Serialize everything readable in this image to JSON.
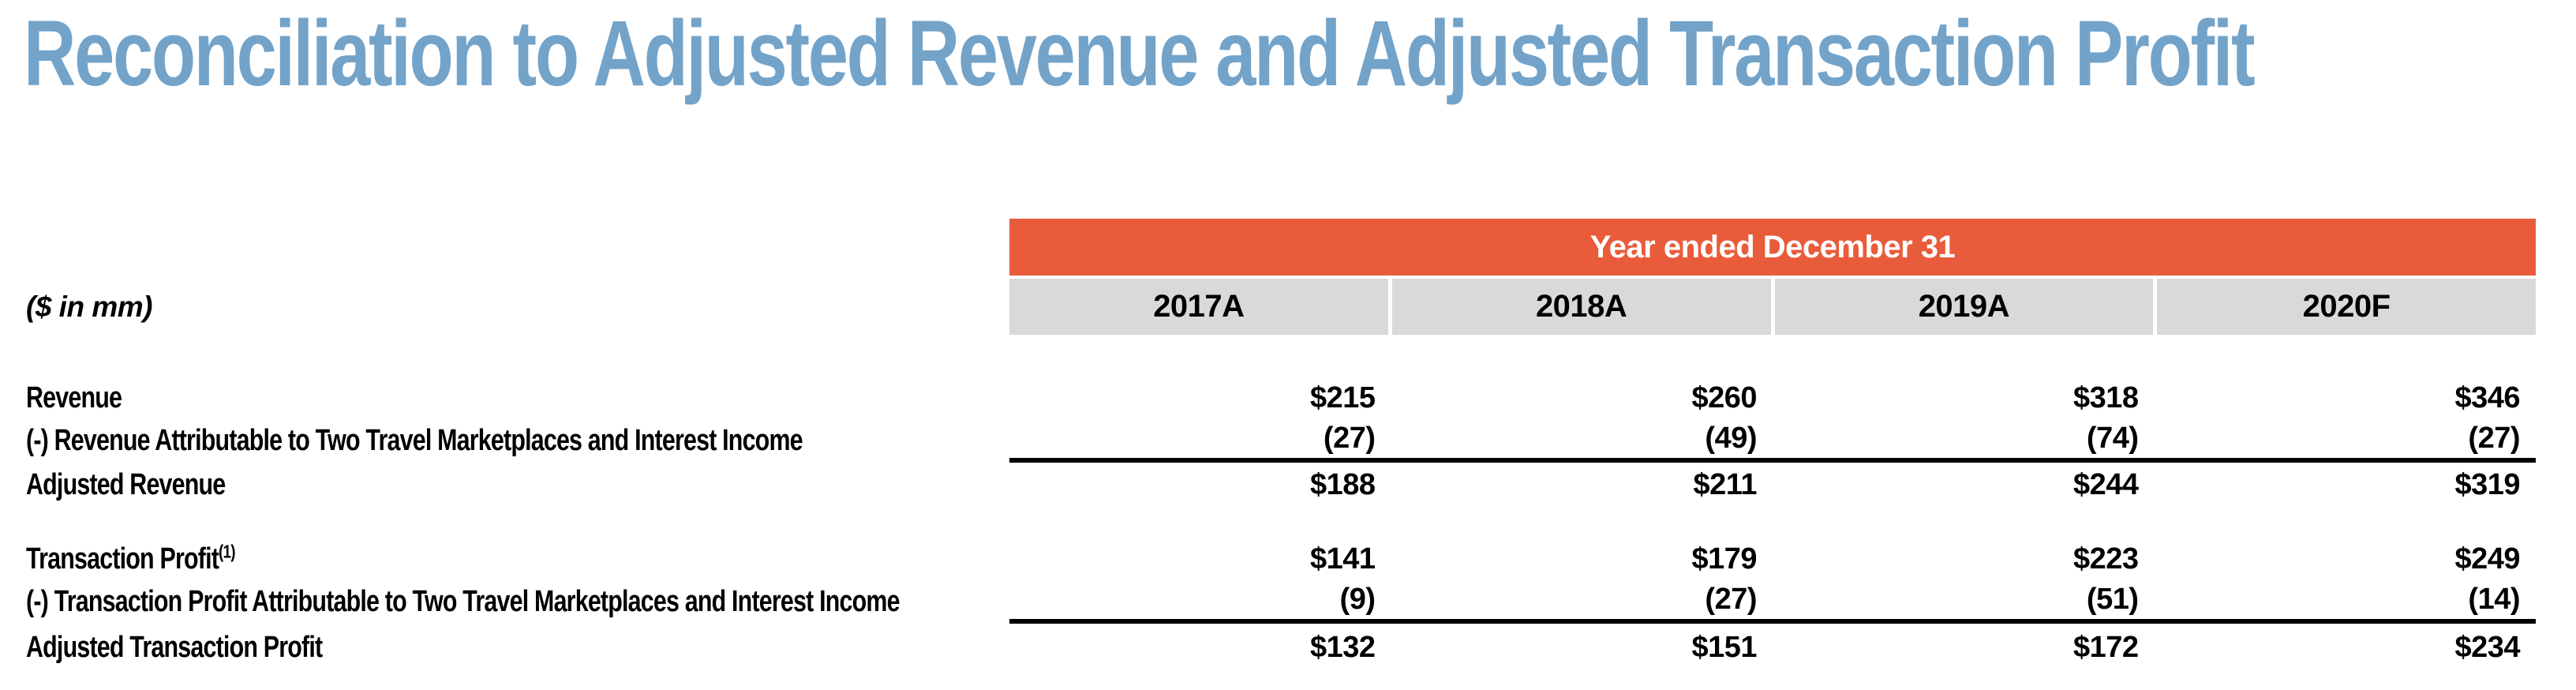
{
  "title": "Reconciliation to Adjusted Revenue and Adjusted Transaction Profit",
  "table": {
    "units_label": "($ in mm)",
    "period_header": "Year ended December 31",
    "columns": [
      "2017A",
      "2018A",
      "2019A",
      "2020F"
    ],
    "rows": [
      {
        "label": "Revenue",
        "footnote": "",
        "values": [
          "$215",
          "$260",
          "$318",
          "$346"
        ]
      },
      {
        "label": "(-) Revenue Attributable to Two Travel Marketplaces and Interest Income",
        "footnote": "",
        "values": [
          "(27)",
          "(49)",
          "(74)",
          "(27)"
        ]
      },
      {
        "label": "Adjusted Revenue",
        "footnote": "",
        "values": [
          "$188",
          "$211",
          "$244",
          "$319"
        ]
      },
      {
        "label": "Transaction Profit",
        "footnote": "(1)",
        "values": [
          "$141",
          "$179",
          "$223",
          "$249"
        ]
      },
      {
        "label": "(-) Transaction Profit Attributable to Two Travel Marketplaces and Interest Income",
        "footnote": "",
        "values": [
          "(9)",
          "(27)",
          "(51)",
          "(14)"
        ]
      },
      {
        "label": "Adjusted Transaction Profit",
        "footnote": "",
        "values": [
          "$132",
          "$151",
          "$172",
          "$234"
        ]
      }
    ]
  },
  "colors": {
    "title_blue": "#73A3C9",
    "band_orange": "#E95C3B",
    "header_gray": "#D9D9D9",
    "text_black": "#000000",
    "background": "#FFFFFF"
  }
}
